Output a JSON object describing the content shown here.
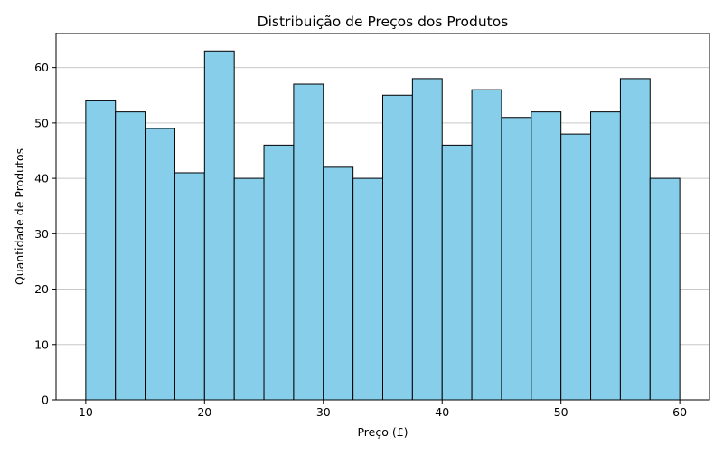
{
  "chart_data": {
    "type": "bar",
    "title": "Distribuição de Preços dos Produtos",
    "xlabel": "Preço (£)",
    "ylabel": "Quantidade de Produtos",
    "bin_edges": [
      10,
      12.5,
      15,
      17.5,
      20,
      22.5,
      25,
      27.5,
      30,
      32.5,
      35,
      37.5,
      40,
      42.5,
      45,
      47.5,
      50,
      52.5,
      55,
      57.5,
      60
    ],
    "values": [
      54,
      52,
      49,
      41,
      63,
      40,
      46,
      57,
      42,
      40,
      55,
      58,
      46,
      56,
      51,
      52,
      48,
      52,
      58,
      40
    ],
    "xlim": [
      7.5,
      62.5
    ],
    "ylim": [
      0,
      66.15
    ],
    "xticks": [
      10,
      20,
      30,
      40,
      50,
      60
    ],
    "yticks": [
      0,
      10,
      20,
      30,
      40,
      50,
      60
    ],
    "grid": "y-axis",
    "colors": {
      "bar_fill": "#87CEEB",
      "bar_edge": "#000000",
      "grid": "#c8c8c8"
    }
  }
}
